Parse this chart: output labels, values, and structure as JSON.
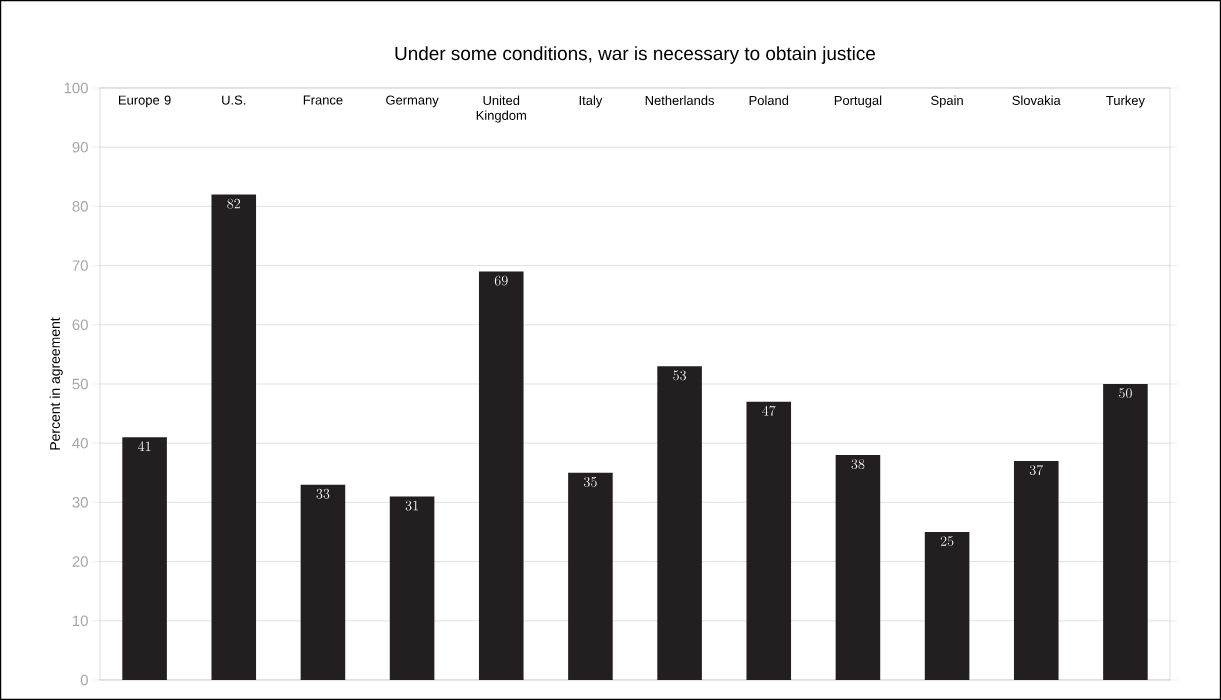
{
  "chart_data": {
    "type": "bar",
    "title": "Under some conditions, war is necessary to obtain justice",
    "ylabel": "Percent in agreement",
    "categories": [
      "Europe 9",
      "U.S.",
      "France",
      "Germany",
      "United Kingdom",
      "Italy",
      "Netherlands",
      "Poland",
      "Portugal",
      "Spain",
      "Slovakia",
      "Turkey"
    ],
    "values": [
      41,
      82,
      33,
      31,
      69,
      35,
      53,
      47,
      38,
      25,
      37,
      50
    ],
    "color": "#231f20",
    "ylim": [
      0,
      100
    ],
    "yticks": [
      0,
      10,
      20,
      30,
      40,
      50,
      60,
      70,
      80,
      90,
      100
    ],
    "grid": true,
    "data_labels": true
  }
}
